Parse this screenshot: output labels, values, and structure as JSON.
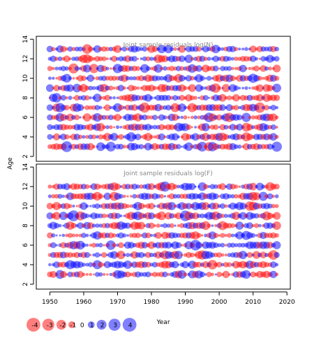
{
  "chart_data": [
    {
      "type": "scatter",
      "title": "Joint sample residuals log(N)",
      "ylabel": "Age",
      "xlim": [
        1946,
        2021
      ],
      "ylim": [
        1.5,
        14.3
      ],
      "yticks": [
        2,
        4,
        6,
        8,
        10,
        12,
        14
      ],
      "years": [
        1950,
        2017
      ],
      "ages": [
        3,
        13
      ],
      "encoding": "bubble size = |residual|, red = negative, blue = positive",
      "seed": 7
    },
    {
      "type": "scatter",
      "title": "Joint sample residuals log(F)",
      "ylabel": "Age",
      "xlabel": "Year",
      "xlim": [
        1946,
        2021
      ],
      "ylim": [
        1.5,
        14.3
      ],
      "xticks": [
        1950,
        1960,
        1970,
        1980,
        1990,
        2000,
        2010,
        2020
      ],
      "yticks": [
        2,
        4,
        6,
        8,
        10,
        12,
        14
      ],
      "years": [
        1950,
        2017
      ],
      "ages": [
        3,
        12
      ],
      "encoding": "bubble size = |residual|, red = negative, blue = positive",
      "seed": 19
    }
  ],
  "legend": {
    "values": [
      -4,
      -3,
      -2,
      -1,
      0,
      1,
      2,
      3,
      4
    ],
    "labels": [
      "-4",
      "-3",
      "-2",
      "-1",
      "0",
      "1",
      "2",
      "3",
      "4"
    ]
  },
  "colors": {
    "negative": "#ff0000",
    "positive": "#0000ff",
    "bubble_opacity": 0.5,
    "title": "#888888"
  }
}
